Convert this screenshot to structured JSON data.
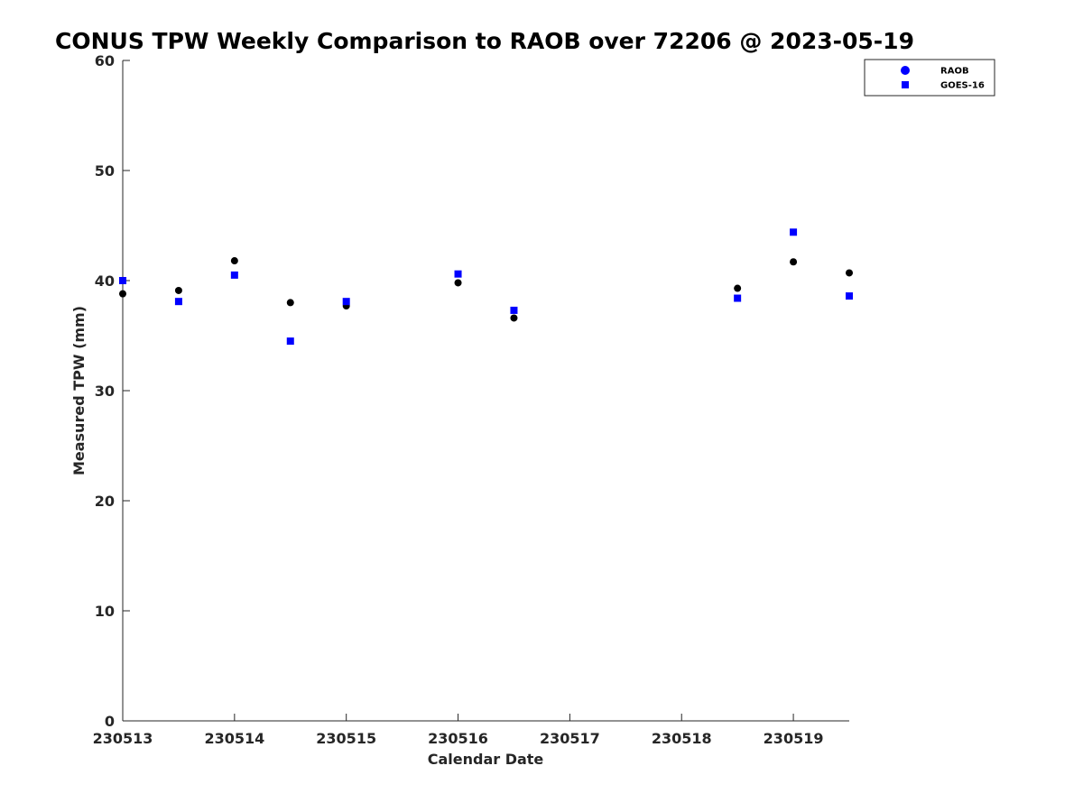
{
  "chart_data": {
    "type": "scatter",
    "title": "CONUS TPW Weekly Comparison to RAOB over 72206 @ 2023-05-19",
    "xlabel": "Calendar Date",
    "ylabel": "Measured TPW (mm)",
    "x_tick_labels": [
      "230513",
      "230514",
      "230515",
      "230516",
      "230517",
      "230518",
      "230519"
    ],
    "y_tick_labels": [
      "0",
      "10",
      "20",
      "30",
      "40",
      "50",
      "60"
    ],
    "xlim": [
      "2023-05-13 00:00",
      "2023-05-19 12:00"
    ],
    "ylim": [
      0,
      60
    ],
    "grid": false,
    "legend_position": "top-right",
    "series": [
      {
        "name": "RAOB",
        "marker": "circle",
        "color": "#000000",
        "legend_color": "#0000ff",
        "x": [
          "2023-05-13 00:00",
          "2023-05-13 12:00",
          "2023-05-14 00:00",
          "2023-05-14 12:00",
          "2023-05-15 00:00",
          "2023-05-16 00:00",
          "2023-05-16 12:00",
          "2023-05-18 12:00",
          "2023-05-19 00:00",
          "2023-05-19 12:00"
        ],
        "values": [
          38.8,
          39.1,
          41.8,
          38.0,
          37.7,
          39.8,
          36.6,
          39.3,
          41.7,
          40.7
        ]
      },
      {
        "name": "GOES-16",
        "marker": "square",
        "color": "#0000ff",
        "legend_color": "#0000ff",
        "x": [
          "2023-05-13 00:00",
          "2023-05-13 12:00",
          "2023-05-14 00:00",
          "2023-05-14 12:00",
          "2023-05-15 00:00",
          "2023-05-16 00:00",
          "2023-05-16 12:00",
          "2023-05-18 12:00",
          "2023-05-19 00:00",
          "2023-05-19 12:00"
        ],
        "values": [
          40.0,
          38.1,
          40.5,
          34.5,
          38.1,
          40.6,
          37.3,
          38.4,
          44.4,
          38.6
        ]
      }
    ]
  }
}
